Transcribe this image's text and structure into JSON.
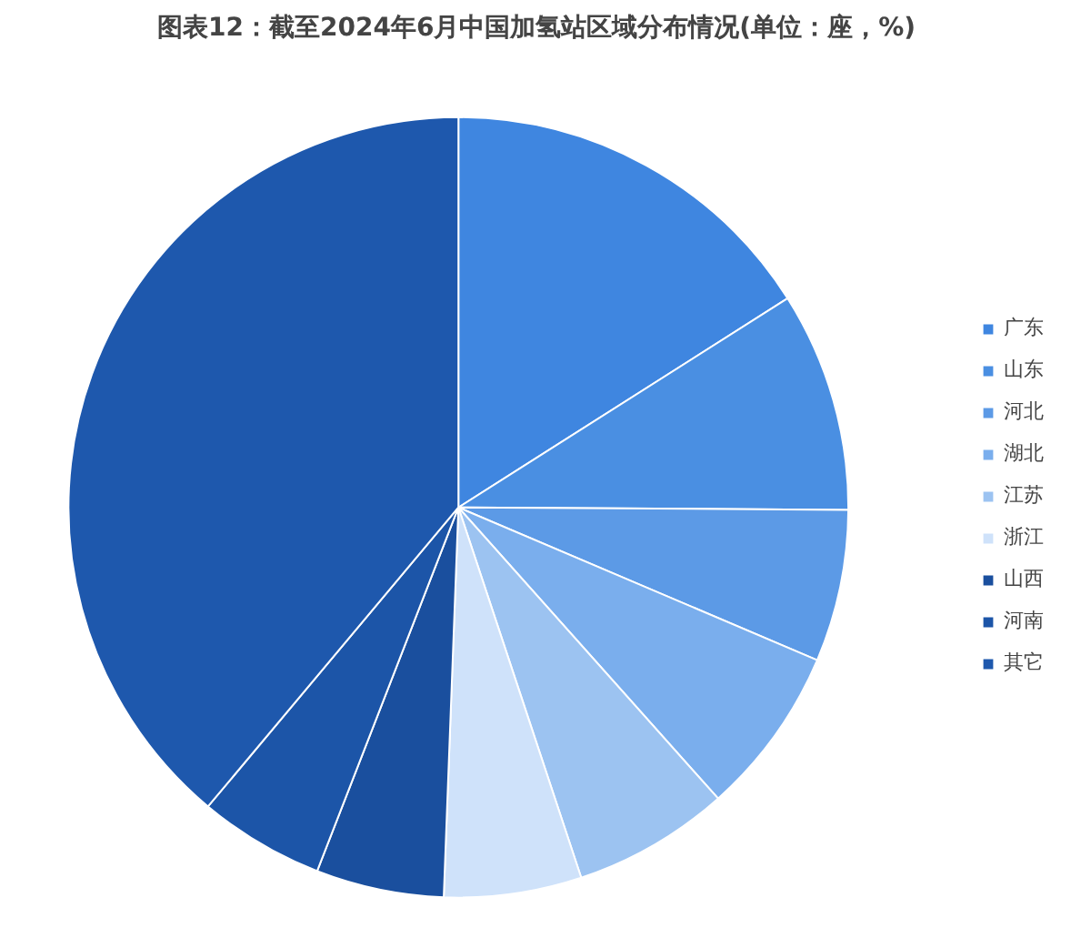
{
  "chart_data": {
    "type": "pie",
    "title": "图表12：截至2024年6月中国加氢站区域分布情况(单位：座，%)",
    "categories": [
      "广东",
      "山东",
      "河北",
      "湖北",
      "江苏",
      "浙江",
      "山西",
      "河南",
      "其它"
    ],
    "values": [
      16,
      9.1,
      6.3,
      7,
      6.5,
      5.7,
      5.3,
      5.2,
      38.9
    ],
    "colors": [
      "#3f86e0",
      "#4a8fe2",
      "#5c9ae6",
      "#7aaeed",
      "#9cc3f1",
      "#cfe2fa",
      "#1a4f9e",
      "#1c55a8",
      "#1e58ad"
    ],
    "legend": "right"
  }
}
